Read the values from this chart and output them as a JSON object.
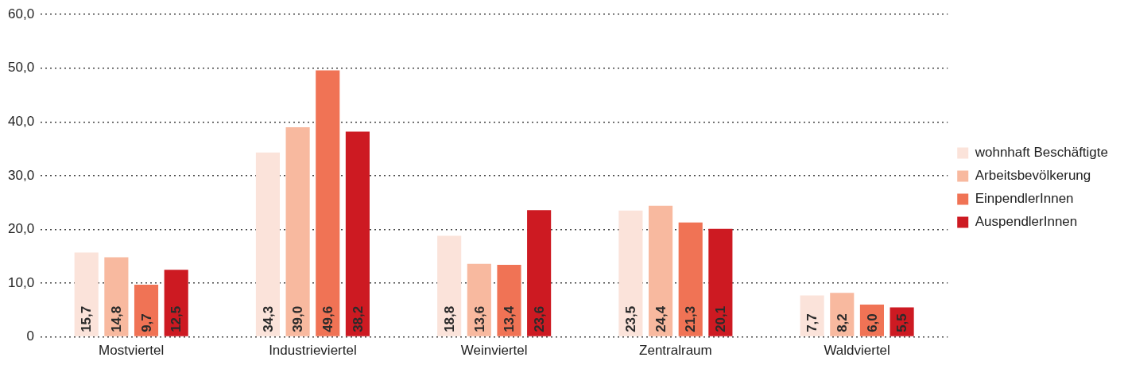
{
  "chart_data": {
    "type": "bar",
    "categories": [
      "Mostviertel",
      "Industrieviertel",
      "Weinviertel",
      "Zentralraum",
      "Waldviertel"
    ],
    "series": [
      {
        "name": "wohnhaft Beschäftigte",
        "color": "#fbe3da",
        "values": [
          15.7,
          34.3,
          18.8,
          23.5,
          7.7
        ],
        "value_labels": [
          "15,7",
          "34,3",
          "18,8",
          "23,5",
          "7,7"
        ]
      },
      {
        "name": "Arbeitsbevölkerung",
        "color": "#f8b99f",
        "values": [
          14.8,
          39.0,
          13.6,
          24.4,
          8.2
        ],
        "value_labels": [
          "14,8",
          "39,0",
          "13,6",
          "24,4",
          "8,2"
        ]
      },
      {
        "name": "EinpendlerInnen",
        "color": "#f07355",
        "values": [
          9.7,
          49.6,
          13.4,
          21.3,
          6.0
        ],
        "value_labels": [
          "9,7",
          "49,6",
          "13,4",
          "21,3",
          "6,0"
        ]
      },
      {
        "name": "AuspendlerInnen",
        "color": "#cd1a22",
        "values": [
          12.5,
          38.2,
          23.6,
          20.1,
          5.5
        ],
        "value_labels": [
          "12,5",
          "38,2",
          "23,6",
          "20,1",
          "5,5"
        ]
      }
    ],
    "ylim": [
      0,
      60
    ],
    "yticks": [
      0,
      {
        "value": 10,
        "label": "10,0"
      },
      {
        "value": 20,
        "label": "20,0"
      },
      {
        "value": 30,
        "label": "30,0"
      },
      {
        "value": 40,
        "label": "40,0"
      },
      {
        "value": 50,
        "label": "50,0"
      },
      {
        "value": 60,
        "label": "60,0"
      }
    ],
    "grid": "y",
    "legend": "right"
  }
}
